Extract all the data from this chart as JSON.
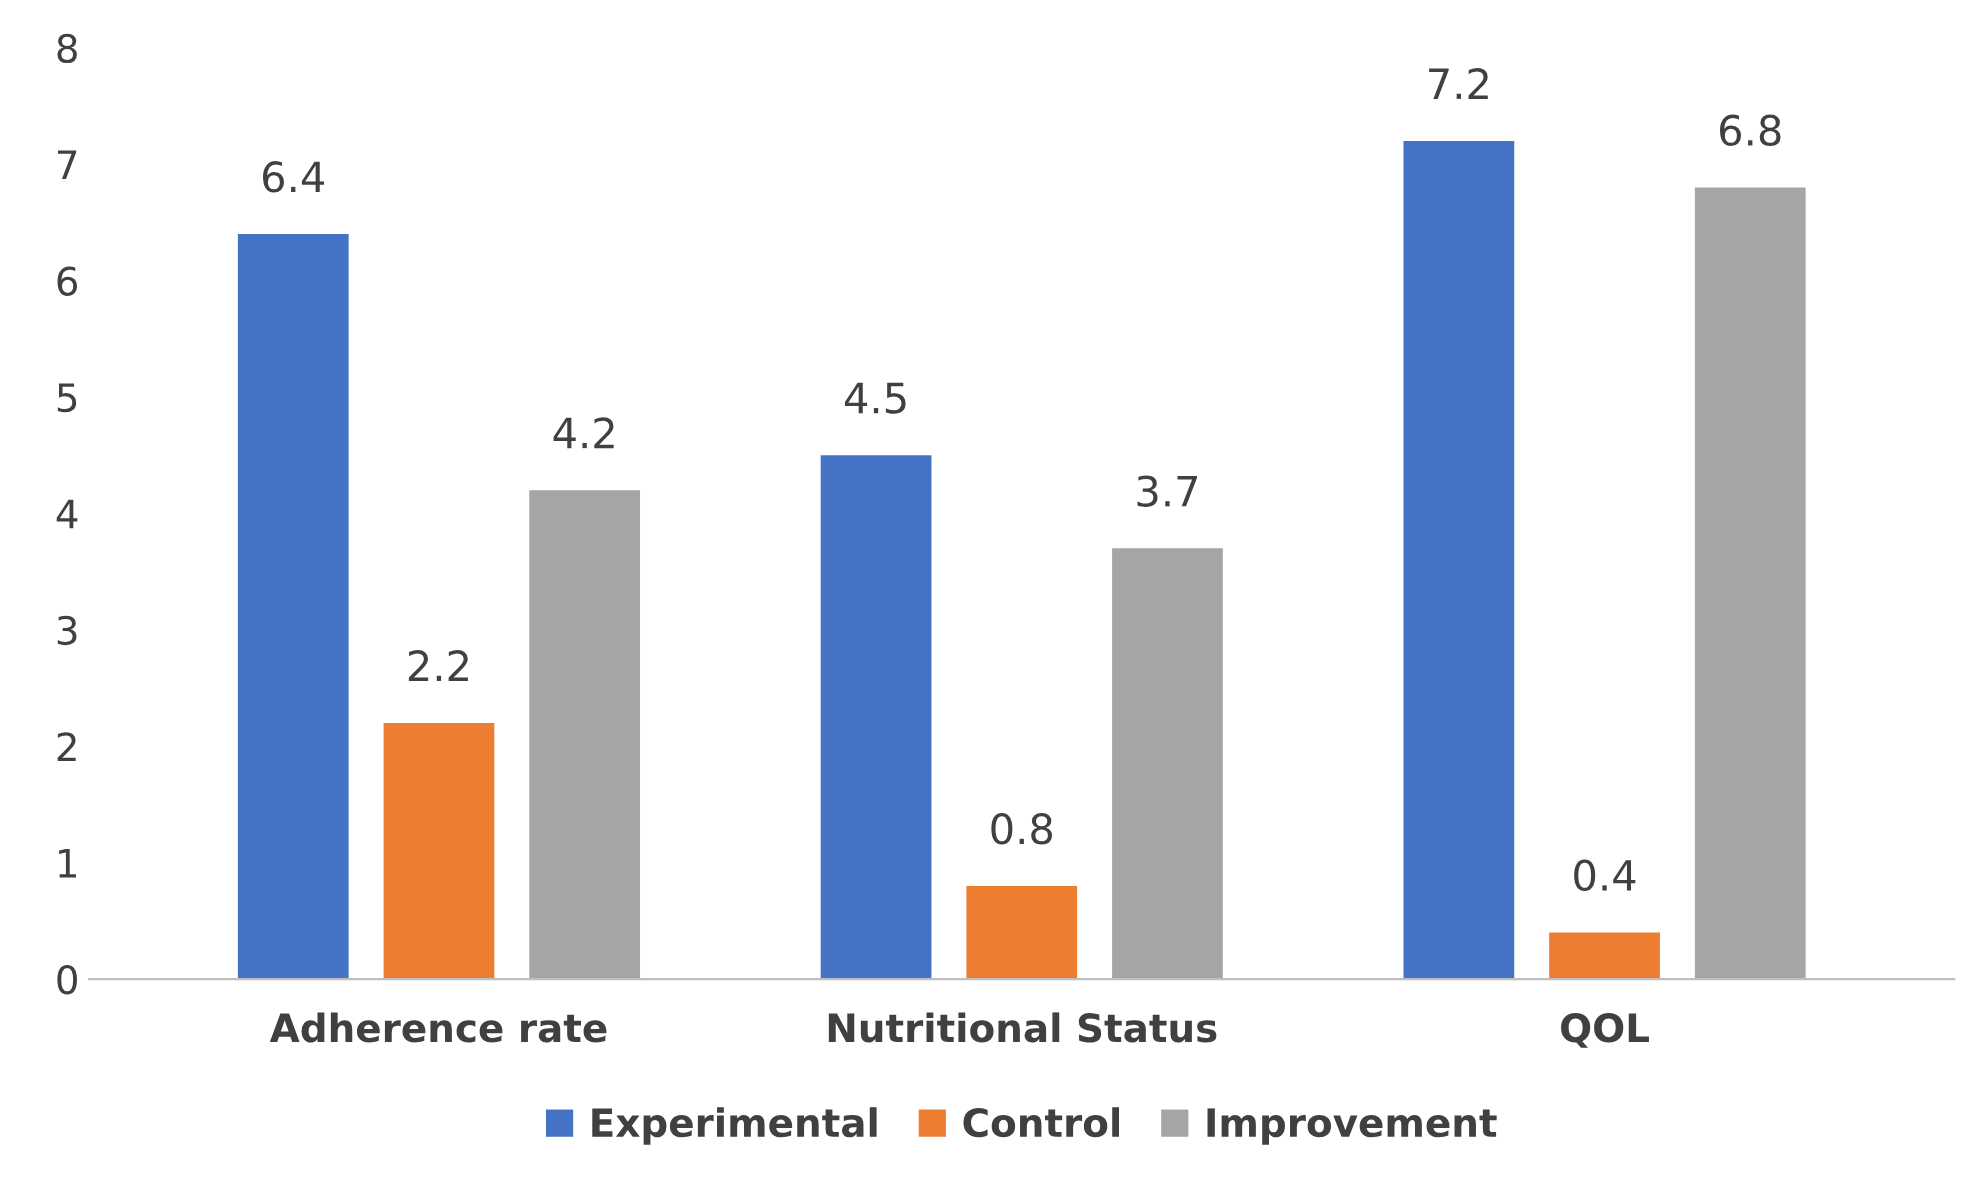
{
  "chart_data": {
    "type": "bar",
    "categories": [
      "Adherence rate",
      "Nutritional Status",
      "QOL"
    ],
    "series": [
      {
        "name": "Experimental",
        "color": "#4472c4",
        "values": [
          6.4,
          4.5,
          7.2
        ]
      },
      {
        "name": "Control",
        "color": "#ed7d31",
        "values": [
          2.2,
          0.8,
          0.4
        ]
      },
      {
        "name": "Improvement",
        "color": "#a5a5a5",
        "values": [
          4.2,
          3.7,
          6.8
        ]
      }
    ],
    "ylim": [
      0,
      8
    ],
    "yticks": [
      0,
      1,
      2,
      3,
      4,
      5,
      6,
      7,
      8
    ],
    "data_labels": true,
    "grid": false,
    "legend": "bottom"
  }
}
